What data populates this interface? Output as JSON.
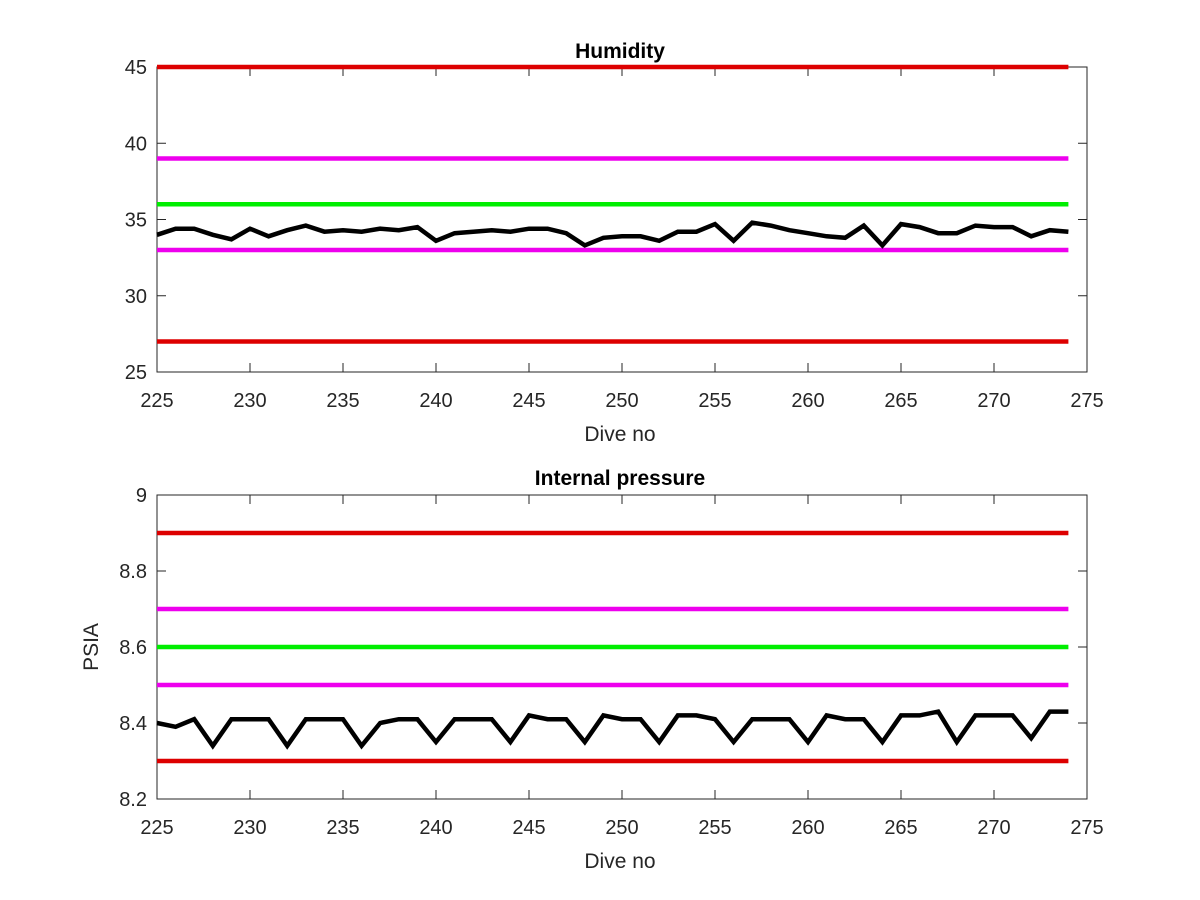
{
  "chart_data": [
    {
      "type": "line",
      "title": "Humidity",
      "xlabel": "Dive no",
      "ylabel": "",
      "xlim": [
        225,
        275
      ],
      "ylim": [
        25,
        45
      ],
      "xticks": [
        225,
        230,
        235,
        240,
        245,
        250,
        255,
        260,
        265,
        270,
        275
      ],
      "yticks": [
        25,
        30,
        35,
        40,
        45
      ],
      "grid": false,
      "x": [
        225,
        226,
        227,
        228,
        229,
        230,
        231,
        232,
        233,
        234,
        235,
        236,
        237,
        238,
        239,
        240,
        241,
        242,
        243,
        244,
        245,
        246,
        247,
        248,
        249,
        250,
        251,
        252,
        253,
        254,
        255,
        256,
        257,
        258,
        259,
        260,
        261,
        262,
        263,
        264,
        265,
        266,
        267,
        268,
        269,
        270,
        271,
        272,
        273,
        274
      ],
      "series": [
        {
          "color": "#000000",
          "values": [
            34.0,
            34.4,
            34.4,
            34.0,
            33.7,
            34.4,
            33.9,
            34.3,
            34.6,
            34.2,
            34.3,
            34.2,
            34.4,
            34.3,
            34.5,
            33.6,
            34.1,
            34.2,
            34.3,
            34.2,
            34.4,
            34.4,
            34.1,
            33.3,
            33.8,
            33.9,
            33.9,
            33.6,
            34.2,
            34.2,
            34.7,
            33.6,
            34.8,
            34.6,
            34.3,
            34.1,
            33.9,
            33.8,
            34.6,
            33.3,
            34.7,
            34.5,
            34.1,
            34.1,
            34.6,
            34.5,
            34.5,
            33.9,
            34.3,
            34.2
          ]
        }
      ],
      "reference_lines": [
        {
          "y": 45,
          "color": "#dd0000"
        },
        {
          "y": 39,
          "color": "#ee00ee"
        },
        {
          "y": 36,
          "color": "#00ee00"
        },
        {
          "y": 33,
          "color": "#ee00ee"
        },
        {
          "y": 27,
          "color": "#dd0000"
        }
      ]
    },
    {
      "type": "line",
      "title": "Internal pressure",
      "xlabel": "Dive no",
      "ylabel": "PSIA",
      "xlim": [
        225,
        275
      ],
      "ylim": [
        8.2,
        9
      ],
      "xticks": [
        225,
        230,
        235,
        240,
        245,
        250,
        255,
        260,
        265,
        270,
        275
      ],
      "yticks": [
        8.2,
        8.4,
        8.6,
        8.8,
        9
      ],
      "grid": false,
      "x": [
        225,
        226,
        227,
        228,
        229,
        230,
        231,
        232,
        233,
        234,
        235,
        236,
        237,
        238,
        239,
        240,
        241,
        242,
        243,
        244,
        245,
        246,
        247,
        248,
        249,
        250,
        251,
        252,
        253,
        254,
        255,
        256,
        257,
        258,
        259,
        260,
        261,
        262,
        263,
        264,
        265,
        266,
        267,
        268,
        269,
        270,
        271,
        272,
        273,
        274
      ],
      "series": [
        {
          "color": "#000000",
          "values": [
            8.4,
            8.39,
            8.41,
            8.34,
            8.41,
            8.41,
            8.41,
            8.34,
            8.41,
            8.41,
            8.41,
            8.34,
            8.4,
            8.41,
            8.41,
            8.35,
            8.41,
            8.41,
            8.41,
            8.35,
            8.42,
            8.41,
            8.41,
            8.35,
            8.42,
            8.41,
            8.41,
            8.35,
            8.42,
            8.42,
            8.41,
            8.35,
            8.41,
            8.41,
            8.41,
            8.35,
            8.42,
            8.41,
            8.41,
            8.35,
            8.42,
            8.42,
            8.43,
            8.35,
            8.42,
            8.42,
            8.42,
            8.36,
            8.43,
            8.43
          ]
        }
      ],
      "reference_lines": [
        {
          "y": 8.9,
          "color": "#dd0000"
        },
        {
          "y": 8.7,
          "color": "#ee00ee"
        },
        {
          "y": 8.6,
          "color": "#00ee00"
        },
        {
          "y": 8.5,
          "color": "#ee00ee"
        },
        {
          "y": 8.3,
          "color": "#dd0000"
        }
      ]
    }
  ]
}
